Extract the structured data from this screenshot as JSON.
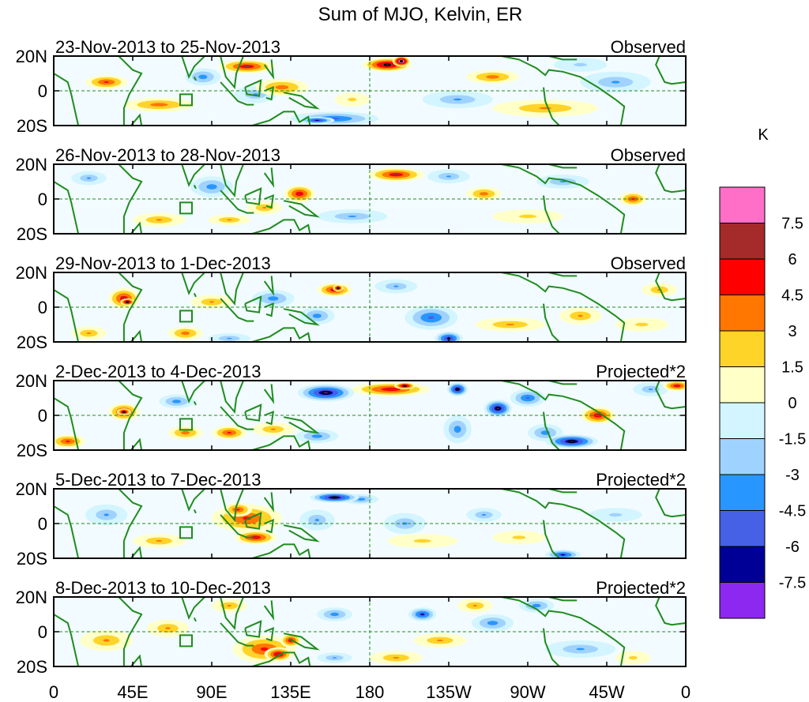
{
  "title": "Sum of MJO, Kelvin, ER",
  "colorbar": {
    "unit": "K",
    "labels": [
      "7.5",
      "6",
      "4.5",
      "3",
      "1.5",
      "0",
      "-1.5",
      "-3",
      "-4.5",
      "-6",
      "-7.5"
    ],
    "colors": [
      "#ff6ec7",
      "#a52a2a",
      "#ff0000",
      "#ff7700",
      "#ffd428",
      "#ffffc8",
      "#d2f5ff",
      "#a0d2ff",
      "#2896ff",
      "#4660e6",
      "#000096",
      "#8c28f0"
    ]
  },
  "x_axis": {
    "ticks": [
      "0",
      "45E",
      "90E",
      "135E",
      "180",
      "135W",
      "90W",
      "45W",
      "0"
    ]
  },
  "y_axis": {
    "ticks": [
      "20N",
      "0",
      "20S"
    ]
  },
  "panels": [
    {
      "date": "23-Nov-2013 to 25-Nov-2013",
      "type": "Observed",
      "blobs": [
        [
          190,
          15,
          14,
          4,
          8
        ],
        [
          198,
          17,
          5,
          3,
          11
        ],
        [
          110,
          14,
          16,
          4,
          6
        ],
        [
          160,
          -16,
          25,
          4,
          -5
        ],
        [
          150,
          -17,
          10,
          2,
          -7
        ],
        [
          250,
          8,
          15,
          4,
          4
        ],
        [
          280,
          -10,
          30,
          5,
          3
        ],
        [
          60,
          -8,
          20,
          4,
          4
        ],
        [
          30,
          5,
          12,
          4,
          5
        ],
        [
          85,
          8,
          10,
          5,
          -4
        ],
        [
          130,
          2,
          15,
          5,
          4
        ],
        [
          115,
          -2,
          12,
          5,
          -3
        ],
        [
          230,
          -5,
          20,
          5,
          -3
        ],
        [
          320,
          5,
          20,
          6,
          -3
        ],
        [
          300,
          15,
          15,
          4,
          -2
        ],
        [
          170,
          -5,
          10,
          4,
          2
        ]
      ]
    },
    {
      "date": "26-Nov-2013 to 28-Nov-2013",
      "type": "Observed",
      "blobs": [
        [
          195,
          14,
          16,
          4,
          6
        ],
        [
          140,
          3,
          9,
          5,
          6
        ],
        [
          120,
          -5,
          10,
          4,
          3
        ],
        [
          90,
          7,
          12,
          6,
          -4
        ],
        [
          245,
          3,
          10,
          4,
          4
        ],
        [
          330,
          0,
          8,
          4,
          5
        ],
        [
          20,
          12,
          10,
          4,
          -3
        ],
        [
          60,
          -12,
          15,
          4,
          3
        ],
        [
          170,
          -10,
          20,
          4,
          -3
        ],
        [
          225,
          13,
          12,
          4,
          -3
        ],
        [
          270,
          -10,
          20,
          4,
          2
        ],
        [
          290,
          10,
          15,
          4,
          -3
        ],
        [
          100,
          -12,
          12,
          3,
          3
        ]
      ]
    },
    {
      "date": "29-Nov-2013 to 1-Dec-2013",
      "type": "Observed",
      "blobs": [
        [
          40,
          5,
          9,
          6,
          6
        ],
        [
          42,
          3,
          4,
          2,
          9
        ],
        [
          160,
          10,
          10,
          4,
          6
        ],
        [
          162,
          11,
          3,
          2,
          8
        ],
        [
          125,
          5,
          12,
          5,
          -4
        ],
        [
          90,
          3,
          12,
          4,
          3
        ],
        [
          150,
          -5,
          10,
          5,
          -4
        ],
        [
          215,
          -6,
          15,
          7,
          -5
        ],
        [
          225,
          -18,
          8,
          4,
          -7
        ],
        [
          75,
          -15,
          10,
          4,
          4
        ],
        [
          260,
          -10,
          20,
          4,
          3
        ],
        [
          300,
          -5,
          12,
          5,
          3
        ],
        [
          335,
          -10,
          15,
          4,
          2
        ],
        [
          345,
          10,
          10,
          4,
          3
        ],
        [
          195,
          12,
          12,
          4,
          -3
        ],
        [
          20,
          -15,
          10,
          4,
          3
        ],
        [
          100,
          -18,
          12,
          3,
          -3
        ]
      ]
    },
    {
      "date": "2-Dec-2013 to 4-Dec-2013",
      "type": "Projected*2",
      "blobs": [
        [
          155,
          13,
          16,
          5,
          -8
        ],
        [
          192,
          15,
          22,
          4,
          6
        ],
        [
          200,
          17,
          6,
          2,
          8
        ],
        [
          230,
          15,
          6,
          4,
          -8
        ],
        [
          253,
          4,
          8,
          5,
          -8
        ],
        [
          295,
          -15,
          15,
          4,
          -8
        ],
        [
          310,
          0,
          10,
          5,
          6
        ],
        [
          40,
          2,
          9,
          5,
          6
        ],
        [
          40,
          2,
          4,
          2,
          8
        ],
        [
          100,
          -10,
          10,
          4,
          5
        ],
        [
          125,
          -8,
          12,
          4,
          3
        ],
        [
          8,
          -15,
          10,
          4,
          5
        ],
        [
          230,
          -8,
          8,
          8,
          -4
        ],
        [
          340,
          15,
          10,
          4,
          -3
        ],
        [
          355,
          17,
          8,
          3,
          6
        ],
        [
          150,
          -12,
          12,
          4,
          -4
        ],
        [
          270,
          10,
          10,
          5,
          -5
        ],
        [
          75,
          -10,
          10,
          4,
          4
        ],
        [
          70,
          8,
          10,
          4,
          -4
        ],
        [
          280,
          -10,
          10,
          5,
          -4
        ]
      ]
    },
    {
      "date": "5-Dec-2013 to 7-Dec-2013",
      "type": "Projected*2",
      "blobs": [
        [
          110,
          3,
          20,
          8,
          5
        ],
        [
          115,
          -8,
          12,
          4,
          6
        ],
        [
          105,
          8,
          8,
          4,
          5
        ],
        [
          160,
          15,
          14,
          3,
          -8
        ],
        [
          175,
          14,
          10,
          3,
          -4
        ],
        [
          290,
          -18,
          10,
          3,
          -6
        ],
        [
          30,
          5,
          12,
          6,
          -3
        ],
        [
          150,
          2,
          10,
          6,
          -3
        ],
        [
          200,
          0,
          12,
          6,
          -3
        ],
        [
          245,
          5,
          10,
          4,
          -3
        ],
        [
          210,
          -10,
          20,
          4,
          2
        ],
        [
          60,
          -10,
          15,
          4,
          3
        ],
        [
          320,
          5,
          15,
          4,
          -2
        ],
        [
          265,
          -8,
          15,
          4,
          2
        ]
      ]
    },
    {
      "date": "8-Dec-2013 to 10-Dec-2013",
      "type": "Projected*2",
      "blobs": [
        [
          120,
          -10,
          18,
          8,
          5
        ],
        [
          128,
          -13,
          8,
          4,
          7
        ],
        [
          135,
          -5,
          6,
          4,
          6
        ],
        [
          160,
          10,
          10,
          4,
          -4
        ],
        [
          210,
          10,
          8,
          4,
          -6
        ],
        [
          250,
          5,
          12,
          5,
          -4
        ],
        [
          275,
          15,
          10,
          4,
          -4
        ],
        [
          65,
          2,
          12,
          5,
          3
        ],
        [
          30,
          -5,
          15,
          6,
          3
        ],
        [
          195,
          -15,
          15,
          4,
          3
        ],
        [
          220,
          -5,
          15,
          4,
          3
        ],
        [
          300,
          -10,
          20,
          5,
          -3
        ],
        [
          100,
          15,
          10,
          4,
          3
        ],
        [
          160,
          -15,
          10,
          3,
          -3
        ],
        [
          330,
          -15,
          10,
          4,
          2
        ],
        [
          240,
          15,
          10,
          4,
          3
        ]
      ]
    }
  ]
}
